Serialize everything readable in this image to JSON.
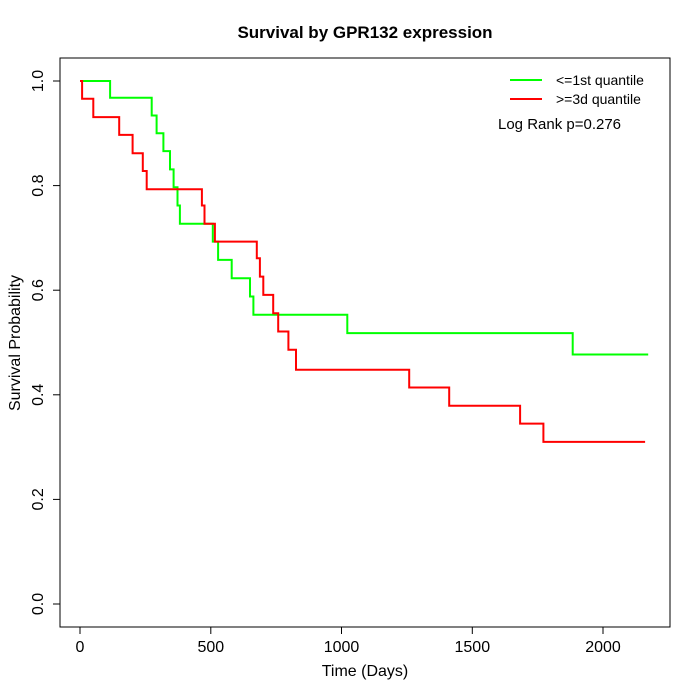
{
  "chart_data": {
    "type": "line",
    "subtype": "kaplan-meier-step-survival",
    "title": "Survival by GPR132 expression",
    "xlabel": "Time (Days)",
    "ylabel": "Survival Probability",
    "xlim": [
      0,
      2200
    ],
    "ylim": [
      0.0,
      1.0
    ],
    "grid": false,
    "legend_position": "top-right-inside",
    "annotation": "Log Rank p=0.276",
    "xticks": [
      0,
      500,
      1000,
      1500,
      2000
    ],
    "xtick_labels": [
      "0",
      "500",
      "1000",
      "1500",
      "2000"
    ],
    "yticks": [
      0.0,
      0.2,
      0.4,
      0.6,
      0.8,
      1.0
    ],
    "ytick_labels": [
      "0.0",
      "0.2",
      "0.4",
      "0.6",
      "0.8",
      "1.0"
    ],
    "series": [
      {
        "id": "low-quantile",
        "name": "<=1st quantile",
        "color": "#00ff00",
        "end_day": 2173,
        "steps": [
          [
            0,
            1.0
          ],
          [
            115,
            0.968
          ],
          [
            274,
            0.934
          ],
          [
            293,
            0.9
          ],
          [
            319,
            0.866
          ],
          [
            344,
            0.831
          ],
          [
            358,
            0.797
          ],
          [
            373,
            0.762
          ],
          [
            382,
            0.727
          ],
          [
            508,
            0.693
          ],
          [
            528,
            0.658
          ],
          [
            580,
            0.623
          ],
          [
            650,
            0.588
          ],
          [
            663,
            0.553
          ],
          [
            1022,
            0.518
          ],
          [
            1884,
            0.477
          ]
        ]
      },
      {
        "id": "high-quantile",
        "name": ">=3d quantile",
        "color": "#ff0000",
        "end_day": 2161,
        "steps": [
          [
            0,
            1.0
          ],
          [
            8,
            0.966
          ],
          [
            51,
            0.931
          ],
          [
            150,
            0.897
          ],
          [
            201,
            0.862
          ],
          [
            240,
            0.828
          ],
          [
            255,
            0.793
          ],
          [
            466,
            0.762
          ],
          [
            476,
            0.727
          ],
          [
            516,
            0.693
          ],
          [
            676,
            0.661
          ],
          [
            688,
            0.626
          ],
          [
            701,
            0.591
          ],
          [
            739,
            0.556
          ],
          [
            758,
            0.521
          ],
          [
            797,
            0.486
          ],
          [
            826,
            0.448
          ],
          [
            1259,
            0.414
          ],
          [
            1412,
            0.379
          ],
          [
            1683,
            0.345
          ],
          [
            1772,
            0.31
          ]
        ]
      }
    ]
  }
}
